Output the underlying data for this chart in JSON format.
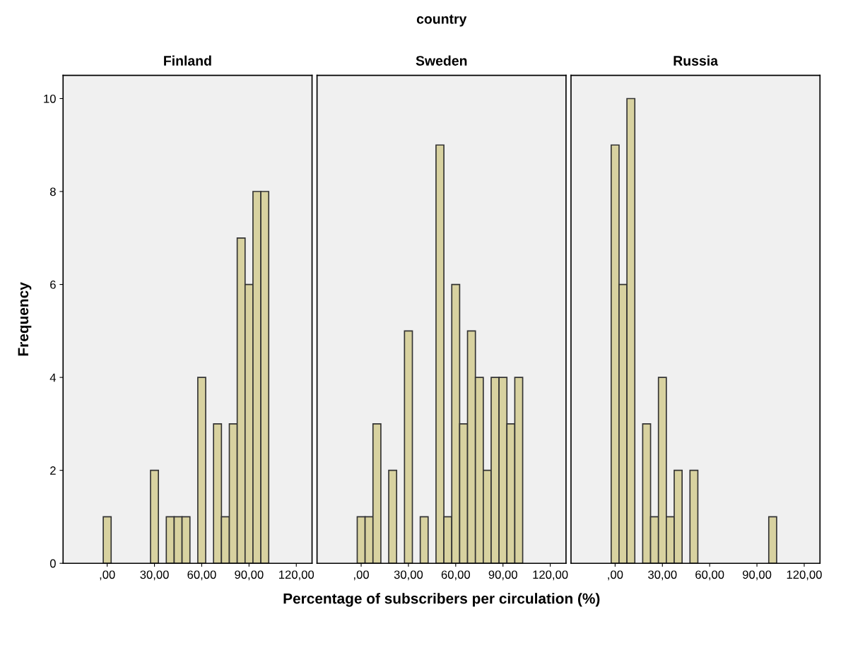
{
  "chart_data": [
    {
      "type": "histogram",
      "title": "Finland",
      "ylabel": "Frequency",
      "bins": [
        -2.5,
        2.5,
        7.5,
        12.5,
        17.5,
        22.5,
        27.5,
        32.5,
        37.5,
        42.5,
        47.5,
        52.5,
        57.5,
        62.5,
        67.5,
        72.5,
        77.5,
        82.5,
        87.5,
        92.5,
        97.5,
        102.5
      ],
      "values": [
        1,
        0,
        0,
        0,
        0,
        0,
        2,
        0,
        1,
        1,
        1,
        0,
        4,
        0,
        3,
        1,
        3,
        7,
        6,
        8,
        8
      ],
      "color": "#d8d2a0",
      "xlim": [
        -28,
        130
      ],
      "ylim": [
        0,
        10.5
      ],
      "xticks": [
        {
          "value": 0,
          "label": ",00"
        },
        {
          "value": 30,
          "label": "30,00"
        },
        {
          "value": 60,
          "label": "60,00"
        },
        {
          "value": 90,
          "label": "90,00"
        },
        {
          "value": 120,
          "label": "120,00"
        }
      ],
      "yticks": [
        0,
        2,
        4,
        6,
        8,
        10
      ],
      "grid": false
    },
    {
      "type": "histogram",
      "title": "Sweden",
      "xlabel": "Percentage of subscribers per circulation (%)",
      "annotations": [
        "country"
      ],
      "bins": [
        -2.5,
        2.5,
        7.5,
        12.5,
        17.5,
        22.5,
        27.5,
        32.5,
        37.5,
        42.5,
        47.5,
        52.5,
        57.5,
        62.5,
        67.5,
        72.5,
        77.5,
        82.5,
        87.5,
        92.5,
        97.5,
        102.5
      ],
      "values": [
        1,
        1,
        3,
        0,
        2,
        0,
        5,
        0,
        1,
        0,
        9,
        1,
        6,
        3,
        5,
        4,
        2,
        4,
        4,
        3,
        4
      ],
      "color": "#d8d2a0",
      "xlim": [
        -28,
        130
      ],
      "ylim": [
        0,
        10.5
      ],
      "xticks": [
        {
          "value": 0,
          "label": ",00"
        },
        {
          "value": 30,
          "label": "30,00"
        },
        {
          "value": 60,
          "label": "60,00"
        },
        {
          "value": 90,
          "label": "90,00"
        },
        {
          "value": 120,
          "label": "120,00"
        }
      ],
      "yticks": [
        0,
        2,
        4,
        6,
        8,
        10
      ],
      "tick_labels": "x",
      "grid": false
    },
    {
      "type": "histogram",
      "title": "Russia",
      "bins": [
        -2.5,
        2.5,
        7.5,
        12.5,
        17.5,
        22.5,
        27.5,
        32.5,
        37.5,
        42.5,
        47.5,
        52.5,
        57.5,
        62.5,
        67.5,
        72.5,
        77.5,
        82.5,
        87.5,
        92.5,
        97.5,
        102.5
      ],
      "values": [
        9,
        6,
        10,
        0,
        3,
        1,
        4,
        1,
        2,
        0,
        2,
        0,
        0,
        0,
        0,
        0,
        0,
        0,
        0,
        0,
        1
      ],
      "color": "#d8d2a0",
      "xlim": [
        -28,
        130
      ],
      "ylim": [
        0,
        10.5
      ],
      "xticks": [
        {
          "value": 0,
          "label": ",00"
        },
        {
          "value": 30,
          "label": "30,00"
        },
        {
          "value": 60,
          "label": "60,00"
        },
        {
          "value": 90,
          "label": "90,00"
        },
        {
          "value": 120,
          "label": "120,00"
        }
      ],
      "yticks": [
        0,
        2,
        4,
        6,
        8,
        10
      ],
      "tick_labels": "x",
      "grid": false
    }
  ]
}
